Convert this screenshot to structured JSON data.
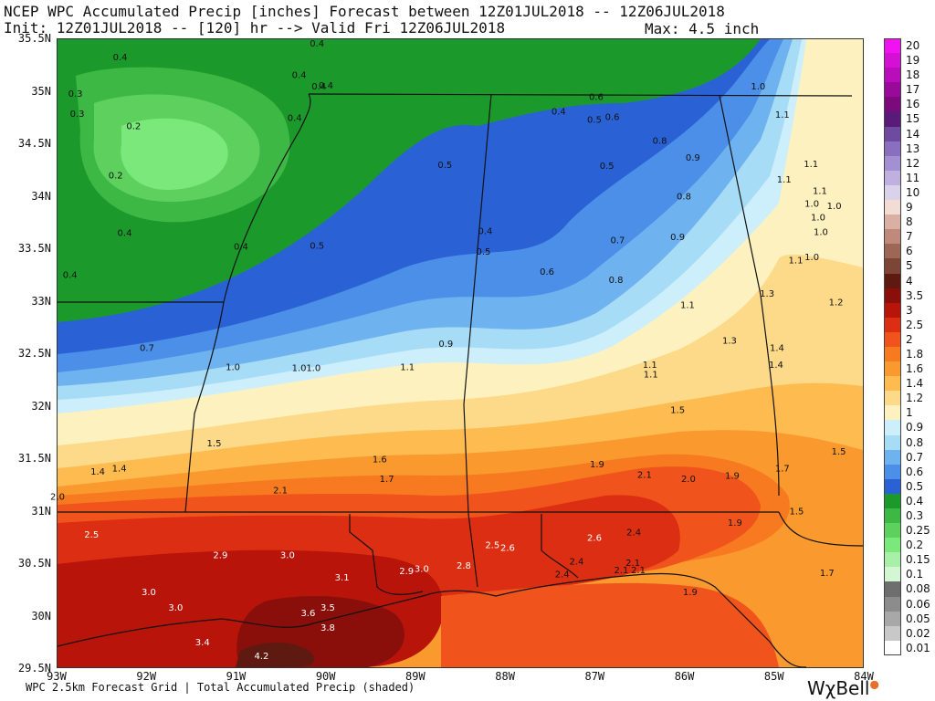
{
  "header": {
    "title": "NCEP WPC Accumulated Precip [inches] Forecast between 12Z01JUL2018 -- 12Z06JUL2018",
    "subtitle": "Init: 12Z01JUL2018 -- [120] hr --> Valid Fri 12Z06JUL2018",
    "max_label": "Max: 4.5 inch"
  },
  "axes": {
    "lat_labels": [
      "35.5N",
      "35N",
      "34.5N",
      "34N",
      "33.5N",
      "33N",
      "32.5N",
      "32N",
      "31.5N",
      "31N",
      "30.5N",
      "30N",
      "29.5N"
    ],
    "lon_labels": [
      "93W",
      "92W",
      "91W",
      "90W",
      "89W",
      "88W",
      "87W",
      "86W",
      "85W",
      "84W"
    ]
  },
  "legend": {
    "items": [
      {
        "label": "20",
        "color": "#f012f0"
      },
      {
        "label": "19",
        "color": "#d510d5"
      },
      {
        "label": "18",
        "color": "#b80db8"
      },
      {
        "label": "17",
        "color": "#9a0a9a"
      },
      {
        "label": "16",
        "color": "#7d0a7d"
      },
      {
        "label": "15",
        "color": "#5a1a78"
      },
      {
        "label": "14",
        "color": "#6e4aa0"
      },
      {
        "label": "13",
        "color": "#8a6fbf"
      },
      {
        "label": "12",
        "color": "#a390d3"
      },
      {
        "label": "11",
        "color": "#bfb0e0"
      },
      {
        "label": "10",
        "color": "#d9d2ea"
      },
      {
        "label": "9",
        "color": "#f2dcd4"
      },
      {
        "label": "8",
        "color": "#d9b0a3"
      },
      {
        "label": "7",
        "color": "#bf8a7c"
      },
      {
        "label": "6",
        "color": "#9e6655"
      },
      {
        "label": "5",
        "color": "#7d4535"
      },
      {
        "label": "4",
        "color": "#5e1a10"
      },
      {
        "label": "3.5",
        "color": "#8a0f0a"
      },
      {
        "label": "3",
        "color": "#b8140a"
      },
      {
        "label": "2.5",
        "color": "#dc2e12"
      },
      {
        "label": "2",
        "color": "#f0541c"
      },
      {
        "label": "1.8",
        "color": "#f77a20"
      },
      {
        "label": "1.6",
        "color": "#fa9a2e"
      },
      {
        "label": "1.4",
        "color": "#fdbb50"
      },
      {
        "label": "1.2",
        "color": "#fdda8a"
      },
      {
        "label": "1",
        "color": "#fdf2bf"
      },
      {
        "label": "0.9",
        "color": "#cdeefb"
      },
      {
        "label": "0.8",
        "color": "#a7dcf7"
      },
      {
        "label": "0.7",
        "color": "#6fb2f0"
      },
      {
        "label": "0.6",
        "color": "#4b8fe8"
      },
      {
        "label": "0.5",
        "color": "#2a62d6"
      },
      {
        "label": "0.4",
        "color": "#1b9a2b"
      },
      {
        "label": "0.3",
        "color": "#3db844"
      },
      {
        "label": "0.25",
        "color": "#5dd05d"
      },
      {
        "label": "0.2",
        "color": "#7ae87a"
      },
      {
        "label": "0.15",
        "color": "#a8f0a8"
      },
      {
        "label": "0.1",
        "color": "#d2f7d2"
      },
      {
        "label": "0.08",
        "color": "#6e6e6e"
      },
      {
        "label": "0.06",
        "color": "#8c8c8c"
      },
      {
        "label": "0.05",
        "color": "#a8a8a8"
      },
      {
        "label": "0.02",
        "color": "#c8c8c8"
      },
      {
        "label": "0.01",
        "color": "#ffffff"
      }
    ]
  },
  "map_labels": [
    {
      "text": "0.4",
      "lon": -92.3,
      "lat": 35.3
    },
    {
      "text": "0.4",
      "lon": -90.1,
      "lat": 35.43
    },
    {
      "text": "0.4",
      "lon": -90.3,
      "lat": 35.13
    },
    {
      "text": "0.4",
      "lon": -90.0,
      "lat": 35.03
    },
    {
      "text": "0.4",
      "lon": -90.08,
      "lat": 35.02
    },
    {
      "text": "0.3",
      "lon": -92.8,
      "lat": 34.95
    },
    {
      "text": "0.3",
      "lon": -92.78,
      "lat": 34.76
    },
    {
      "text": "0.2",
      "lon": -92.15,
      "lat": 34.64
    },
    {
      "text": "0.4",
      "lon": -90.35,
      "lat": 34.72
    },
    {
      "text": "0.4",
      "lon": -87.4,
      "lat": 34.78
    },
    {
      "text": "0.6",
      "lon": -86.98,
      "lat": 34.92
    },
    {
      "text": "0.5",
      "lon": -87.0,
      "lat": 34.7
    },
    {
      "text": "0.6",
      "lon": -86.8,
      "lat": 34.73
    },
    {
      "text": "0.2",
      "lon": -92.35,
      "lat": 34.17
    },
    {
      "text": "0.5",
      "lon": -88.67,
      "lat": 34.27
    },
    {
      "text": "0.5",
      "lon": -86.86,
      "lat": 34.26
    },
    {
      "text": "0.8",
      "lon": -86.27,
      "lat": 34.5
    },
    {
      "text": "0.9",
      "lon": -85.9,
      "lat": 34.34
    },
    {
      "text": "1.0",
      "lon": -85.17,
      "lat": 35.02
    },
    {
      "text": "1.1",
      "lon": -84.9,
      "lat": 34.75
    },
    {
      "text": "1.1",
      "lon": -84.58,
      "lat": 34.28
    },
    {
      "text": "1.1",
      "lon": -84.48,
      "lat": 34.02
    },
    {
      "text": "1.1",
      "lon": -84.88,
      "lat": 34.13
    },
    {
      "text": "0.8",
      "lon": -86.0,
      "lat": 33.97
    },
    {
      "text": "1.0",
      "lon": -84.57,
      "lat": 33.9
    },
    {
      "text": "1.0",
      "lon": -84.32,
      "lat": 33.88
    },
    {
      "text": "1.0",
      "lon": -84.5,
      "lat": 33.77
    },
    {
      "text": "1.0",
      "lon": -84.47,
      "lat": 33.63
    },
    {
      "text": "0.4",
      "lon": -92.25,
      "lat": 33.62
    },
    {
      "text": "0.4",
      "lon": -90.95,
      "lat": 33.49
    },
    {
      "text": "0.5",
      "lon": -90.1,
      "lat": 33.5
    },
    {
      "text": "0.4",
      "lon": -88.22,
      "lat": 33.64
    },
    {
      "text": "0.5",
      "lon": -88.24,
      "lat": 33.44
    },
    {
      "text": "0.7",
      "lon": -86.74,
      "lat": 33.55
    },
    {
      "text": "0.9",
      "lon": -86.07,
      "lat": 33.58
    },
    {
      "text": "1.1",
      "lon": -84.75,
      "lat": 33.36
    },
    {
      "text": "1.0",
      "lon": -84.57,
      "lat": 33.39
    },
    {
      "text": "0.4",
      "lon": -92.86,
      "lat": 33.22
    },
    {
      "text": "0.6",
      "lon": -87.53,
      "lat": 33.25
    },
    {
      "text": "0.8",
      "lon": -86.76,
      "lat": 33.17
    },
    {
      "text": "1.3",
      "lon": -85.07,
      "lat": 33.04
    },
    {
      "text": "1.2",
      "lon": -84.3,
      "lat": 32.96
    },
    {
      "text": "1.1",
      "lon": -85.96,
      "lat": 32.93
    },
    {
      "text": "0.7",
      "lon": -92.0,
      "lat": 32.52
    },
    {
      "text": "0.9",
      "lon": -88.66,
      "lat": 32.56
    },
    {
      "text": "1.3",
      "lon": -85.49,
      "lat": 32.59
    },
    {
      "text": "1.4",
      "lon": -84.96,
      "lat": 32.52
    },
    {
      "text": "1.0",
      "lon": -91.04,
      "lat": 32.34
    },
    {
      "text": "1.0",
      "lon": -90.3,
      "lat": 32.33
    },
    {
      "text": "1.0",
      "lon": -90.14,
      "lat": 32.33
    },
    {
      "text": "1.1",
      "lon": -89.09,
      "lat": 32.34
    },
    {
      "text": "1.1",
      "lon": -86.38,
      "lat": 32.36
    },
    {
      "text": "1.1",
      "lon": -86.37,
      "lat": 32.27
    },
    {
      "text": "1.4",
      "lon": -84.97,
      "lat": 32.36
    },
    {
      "text": "1.5",
      "lon": -86.07,
      "lat": 31.93
    },
    {
      "text": "1.5",
      "lon": -91.25,
      "lat": 31.61
    },
    {
      "text": "1.5",
      "lon": -84.27,
      "lat": 31.53
    },
    {
      "text": "1.6",
      "lon": -89.4,
      "lat": 31.46
    },
    {
      "text": "1.4",
      "lon": -92.55,
      "lat": 31.34
    },
    {
      "text": "1.4",
      "lon": -92.31,
      "lat": 31.37
    },
    {
      "text": "1.9",
      "lon": -86.97,
      "lat": 31.41
    },
    {
      "text": "1.7",
      "lon": -89.32,
      "lat": 31.27
    },
    {
      "text": "2.1",
      "lon": -86.44,
      "lat": 31.31
    },
    {
      "text": "2.0",
      "lon": -85.95,
      "lat": 31.27
    },
    {
      "text": "1.9",
      "lon": -85.46,
      "lat": 31.3
    },
    {
      "text": "1.7",
      "lon": -84.9,
      "lat": 31.37
    },
    {
      "text": "2.0",
      "lon": -93.0,
      "lat": 31.1
    },
    {
      "text": "2.1",
      "lon": -90.51,
      "lat": 31.16
    },
    {
      "text": "1.5",
      "lon": -84.74,
      "lat": 30.96
    },
    {
      "text": "1.9",
      "lon": -85.43,
      "lat": 30.85
    },
    {
      "text": "2.5",
      "lon": -92.62,
      "lat": 30.74
    },
    {
      "text": "2.4",
      "lon": -86.56,
      "lat": 30.76
    },
    {
      "text": "2.6",
      "lon": -87.0,
      "lat": 30.71
    },
    {
      "text": "2.5",
      "lon": -88.14,
      "lat": 30.64
    },
    {
      "text": "2.6",
      "lon": -87.97,
      "lat": 30.61
    },
    {
      "text": "2.9",
      "lon": -91.18,
      "lat": 30.54
    },
    {
      "text": "3.0",
      "lon": -90.43,
      "lat": 30.54
    },
    {
      "text": "2.8",
      "lon": -88.46,
      "lat": 30.44
    },
    {
      "text": "2.4",
      "lon": -87.2,
      "lat": 30.48
    },
    {
      "text": "2.1",
      "lon": -86.57,
      "lat": 30.47
    },
    {
      "text": "2.1",
      "lon": -86.7,
      "lat": 30.4
    },
    {
      "text": "2.1",
      "lon": -86.51,
      "lat": 30.4
    },
    {
      "text": "2.4",
      "lon": -87.36,
      "lat": 30.36
    },
    {
      "text": "2.9",
      "lon": -89.1,
      "lat": 30.39
    },
    {
      "text": "3.0",
      "lon": -88.93,
      "lat": 30.41
    },
    {
      "text": "3.1",
      "lon": -89.82,
      "lat": 30.33
    },
    {
      "text": "1.7",
      "lon": -84.4,
      "lat": 30.37
    },
    {
      "text": "1.9",
      "lon": -85.93,
      "lat": 30.19
    },
    {
      "text": "3.0",
      "lon": -91.98,
      "lat": 30.19
    },
    {
      "text": "3.0",
      "lon": -91.68,
      "lat": 30.04
    },
    {
      "text": "3.5",
      "lon": -89.98,
      "lat": 30.04
    },
    {
      "text": "3.6",
      "lon": -90.2,
      "lat": 29.99
    },
    {
      "text": "3.8",
      "lon": -89.98,
      "lat": 29.85
    },
    {
      "text": "3.4",
      "lon": -91.38,
      "lat": 29.71
    },
    {
      "text": "4.2",
      "lon": -90.72,
      "lat": 29.58
    }
  ]
}
